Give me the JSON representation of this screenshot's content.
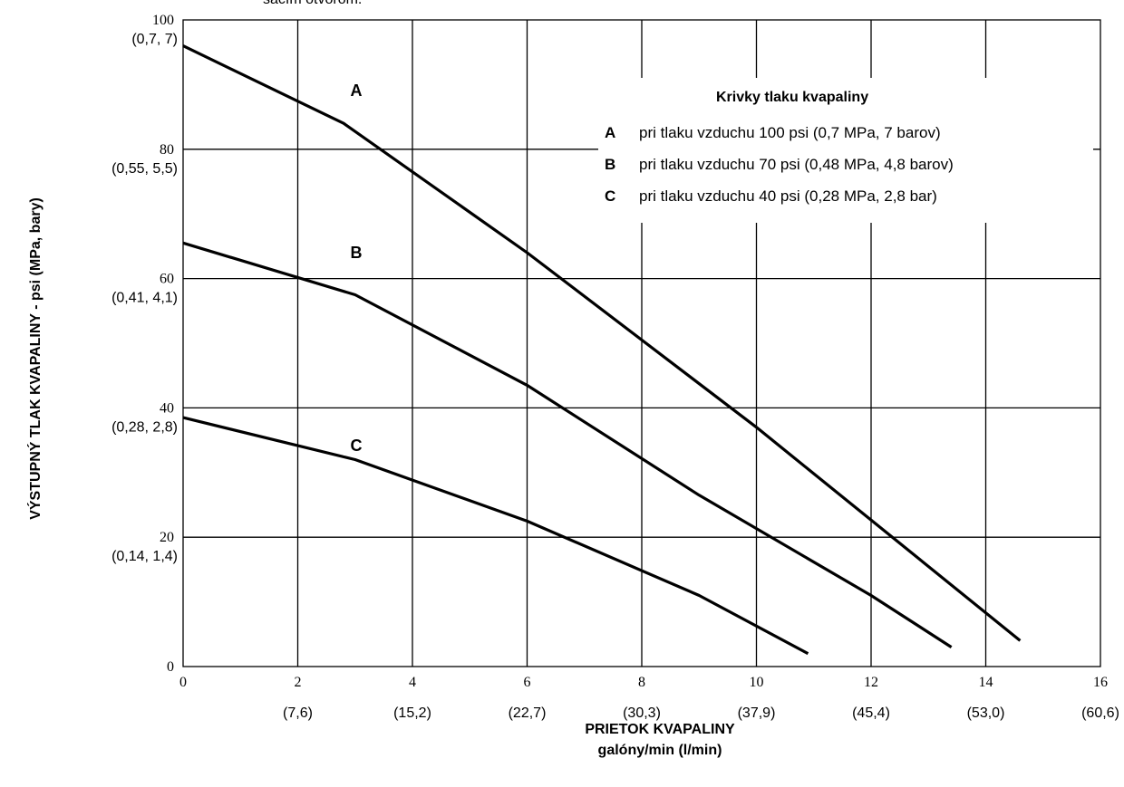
{
  "top_note": "sacím otvorom.",
  "chart_data": {
    "type": "line",
    "xlabel": "PRIETOK KVAPALINY",
    "xlabel_sub": "galóny/min (l/min)",
    "ylabel": "VÝSTUPNÝ TLAK KVAPALINY - psi (MPa, bary)",
    "xlim": [
      0,
      16
    ],
    "ylim": [
      0,
      100
    ],
    "grid": true,
    "legend_position": "top-right",
    "legend_title": "Krivky tlaku kvapaliny",
    "x_ticks": [
      {
        "value": 0,
        "label": "0",
        "sub": ""
      },
      {
        "value": 2,
        "label": "2",
        "sub": "(7,6)"
      },
      {
        "value": 4,
        "label": "4",
        "sub": "(15,2)"
      },
      {
        "value": 6,
        "label": "6",
        "sub": "(22,7)"
      },
      {
        "value": 8,
        "label": "8",
        "sub": "(30,3)"
      },
      {
        "value": 10,
        "label": "10",
        "sub": "(37,9)"
      },
      {
        "value": 12,
        "label": "12",
        "sub": "(45,4)"
      },
      {
        "value": 14,
        "label": "14",
        "sub": "(53,0)"
      },
      {
        "value": 16,
        "label": "16",
        "sub": "(60,6)"
      }
    ],
    "y_ticks": [
      {
        "value": 0,
        "label": "0",
        "sub": ""
      },
      {
        "value": 20,
        "label": "20",
        "sub": "(0,14, 1,4)"
      },
      {
        "value": 40,
        "label": "40",
        "sub": "(0,28, 2,8)"
      },
      {
        "value": 60,
        "label": "60",
        "sub": "(0,41, 4,1)"
      },
      {
        "value": 80,
        "label": "80",
        "sub": "(0,55, 5,5)"
      },
      {
        "value": 100,
        "label": "100",
        "sub": "(0,7, 7)"
      }
    ],
    "series": [
      {
        "name": "A",
        "description": "pri tlaku vzduchu 100 psi (0,7 MPa, 7 barov)",
        "points": [
          [
            0,
            96
          ],
          [
            2.8,
            84
          ],
          [
            6,
            64
          ],
          [
            10,
            37
          ],
          [
            14.6,
            4
          ]
        ]
      },
      {
        "name": "B",
        "description": "pri tlaku vzduchu 70 psi (0,48 MPa, 4,8 barov)",
        "points": [
          [
            0,
            65.5
          ],
          [
            3,
            57.5
          ],
          [
            6,
            43.5
          ],
          [
            9,
            26.5
          ],
          [
            12,
            11
          ],
          [
            13.4,
            3
          ]
        ]
      },
      {
        "name": "C",
        "description": "pri tlaku vzduchu 40 psi (0,28 MPa, 2,8 bar)",
        "points": [
          [
            0,
            38.5
          ],
          [
            3,
            32
          ],
          [
            6,
            22.5
          ],
          [
            9,
            11
          ],
          [
            10.9,
            2
          ]
        ]
      }
    ]
  }
}
